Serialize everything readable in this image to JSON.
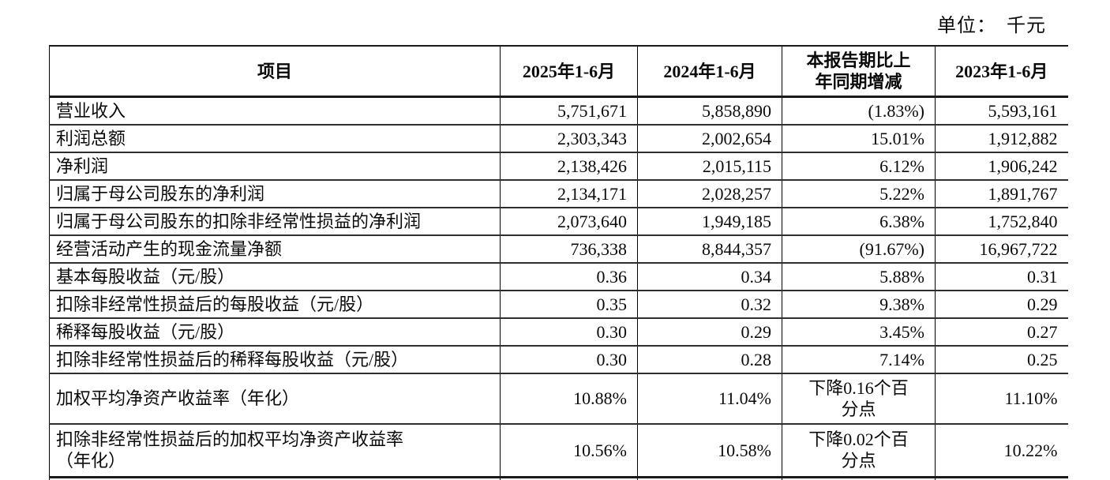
{
  "unit_label": "单位：　千元",
  "table": {
    "headers": [
      "项目",
      "2025年1-6月",
      "2024年1-6月",
      "本报告期比上\n年同期增减",
      "2023年1-6月"
    ],
    "rows": [
      [
        "营业收入",
        "5,751,671",
        "5,858,890",
        "(1.83%)",
        "5,593,161"
      ],
      [
        "利润总额",
        "2,303,343",
        "2,002,654",
        "15.01%",
        "1,912,882"
      ],
      [
        "净利润",
        "2,138,426",
        "2,015,115",
        "6.12%",
        "1,906,242"
      ],
      [
        "归属于母公司股东的净利润",
        "2,134,171",
        "2,028,257",
        "5.22%",
        "1,891,767"
      ],
      [
        "归属于母公司股东的扣除非经常性损益的净利润",
        "2,073,640",
        "1,949,185",
        "6.38%",
        "1,752,840"
      ],
      [
        "经营活动产生的现金流量净额",
        "736,338",
        "8,844,357",
        "(91.67%)",
        "16,967,722"
      ],
      [
        "基本每股收益（元/股）",
        "0.36",
        "0.34",
        "5.88%",
        "0.31"
      ],
      [
        "扣除非经常性损益后的每股收益（元/股）",
        "0.35",
        "0.32",
        "9.38%",
        "0.29"
      ],
      [
        "稀释每股收益（元/股）",
        "0.30",
        "0.29",
        "3.45%",
        "0.27"
      ],
      [
        "扣除非经常性损益后的稀释每股收益（元/股）",
        "0.30",
        "0.28",
        "7.14%",
        "0.25"
      ],
      [
        "加权平均净资产收益率（年化）",
        "10.88%",
        "11.04%",
        "下降0.16个百\n分点",
        "11.10%"
      ],
      [
        "扣除非经常性损益后的加权平均净资产收益率\n（年化）",
        "10.56%",
        "10.58%",
        "下降0.02个百\n分点",
        "10.22%"
      ]
    ]
  }
}
